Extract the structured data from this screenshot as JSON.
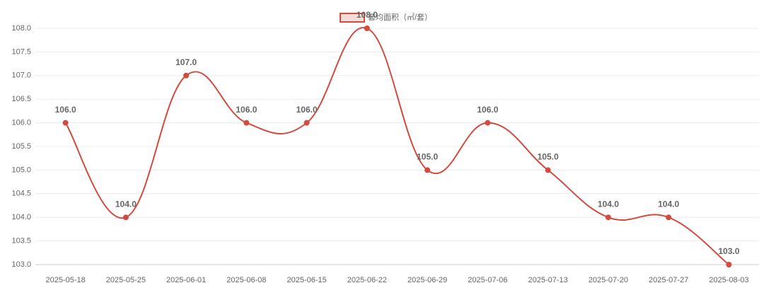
{
  "chart_data": {
    "type": "line",
    "categories": [
      "2025-05-18",
      "2025-05-25",
      "2025-06-01",
      "2025-06-08",
      "2025-06-15",
      "2025-06-22",
      "2025-06-29",
      "2025-07-06",
      "2025-07-13",
      "2025-07-20",
      "2025-07-27",
      "2025-08-03"
    ],
    "series": [
      {
        "name": "套均面积（㎡/套）",
        "color": "#d24b3e",
        "values": [
          106,
          104,
          107,
          106,
          106,
          108,
          105,
          106,
          105,
          104,
          104,
          103
        ],
        "value_labels": [
          "106.0",
          "104.0",
          "107.0",
          "106.0",
          "106.0",
          "108.0",
          "105.0",
          "106.0",
          "105.0",
          "104.0",
          "104.0",
          "103.0"
        ]
      }
    ],
    "ylim": [
      103,
      108
    ],
    "yticks": [
      {
        "value": 103,
        "label": "103.0"
      },
      {
        "value": 103.5,
        "label": "103.5"
      },
      {
        "value": 104,
        "label": "104.0"
      },
      {
        "value": 104.5,
        "label": "104.5"
      },
      {
        "value": 105,
        "label": "105.0"
      },
      {
        "value": 105.5,
        "label": "105.5"
      },
      {
        "value": 106,
        "label": "106.0"
      },
      {
        "value": 106.5,
        "label": "106.5"
      },
      {
        "value": 107,
        "label": "107.0"
      },
      {
        "value": 107.5,
        "label": "107.5"
      },
      {
        "value": 108,
        "label": "108.0"
      }
    ],
    "grid": true,
    "legend": "top"
  }
}
